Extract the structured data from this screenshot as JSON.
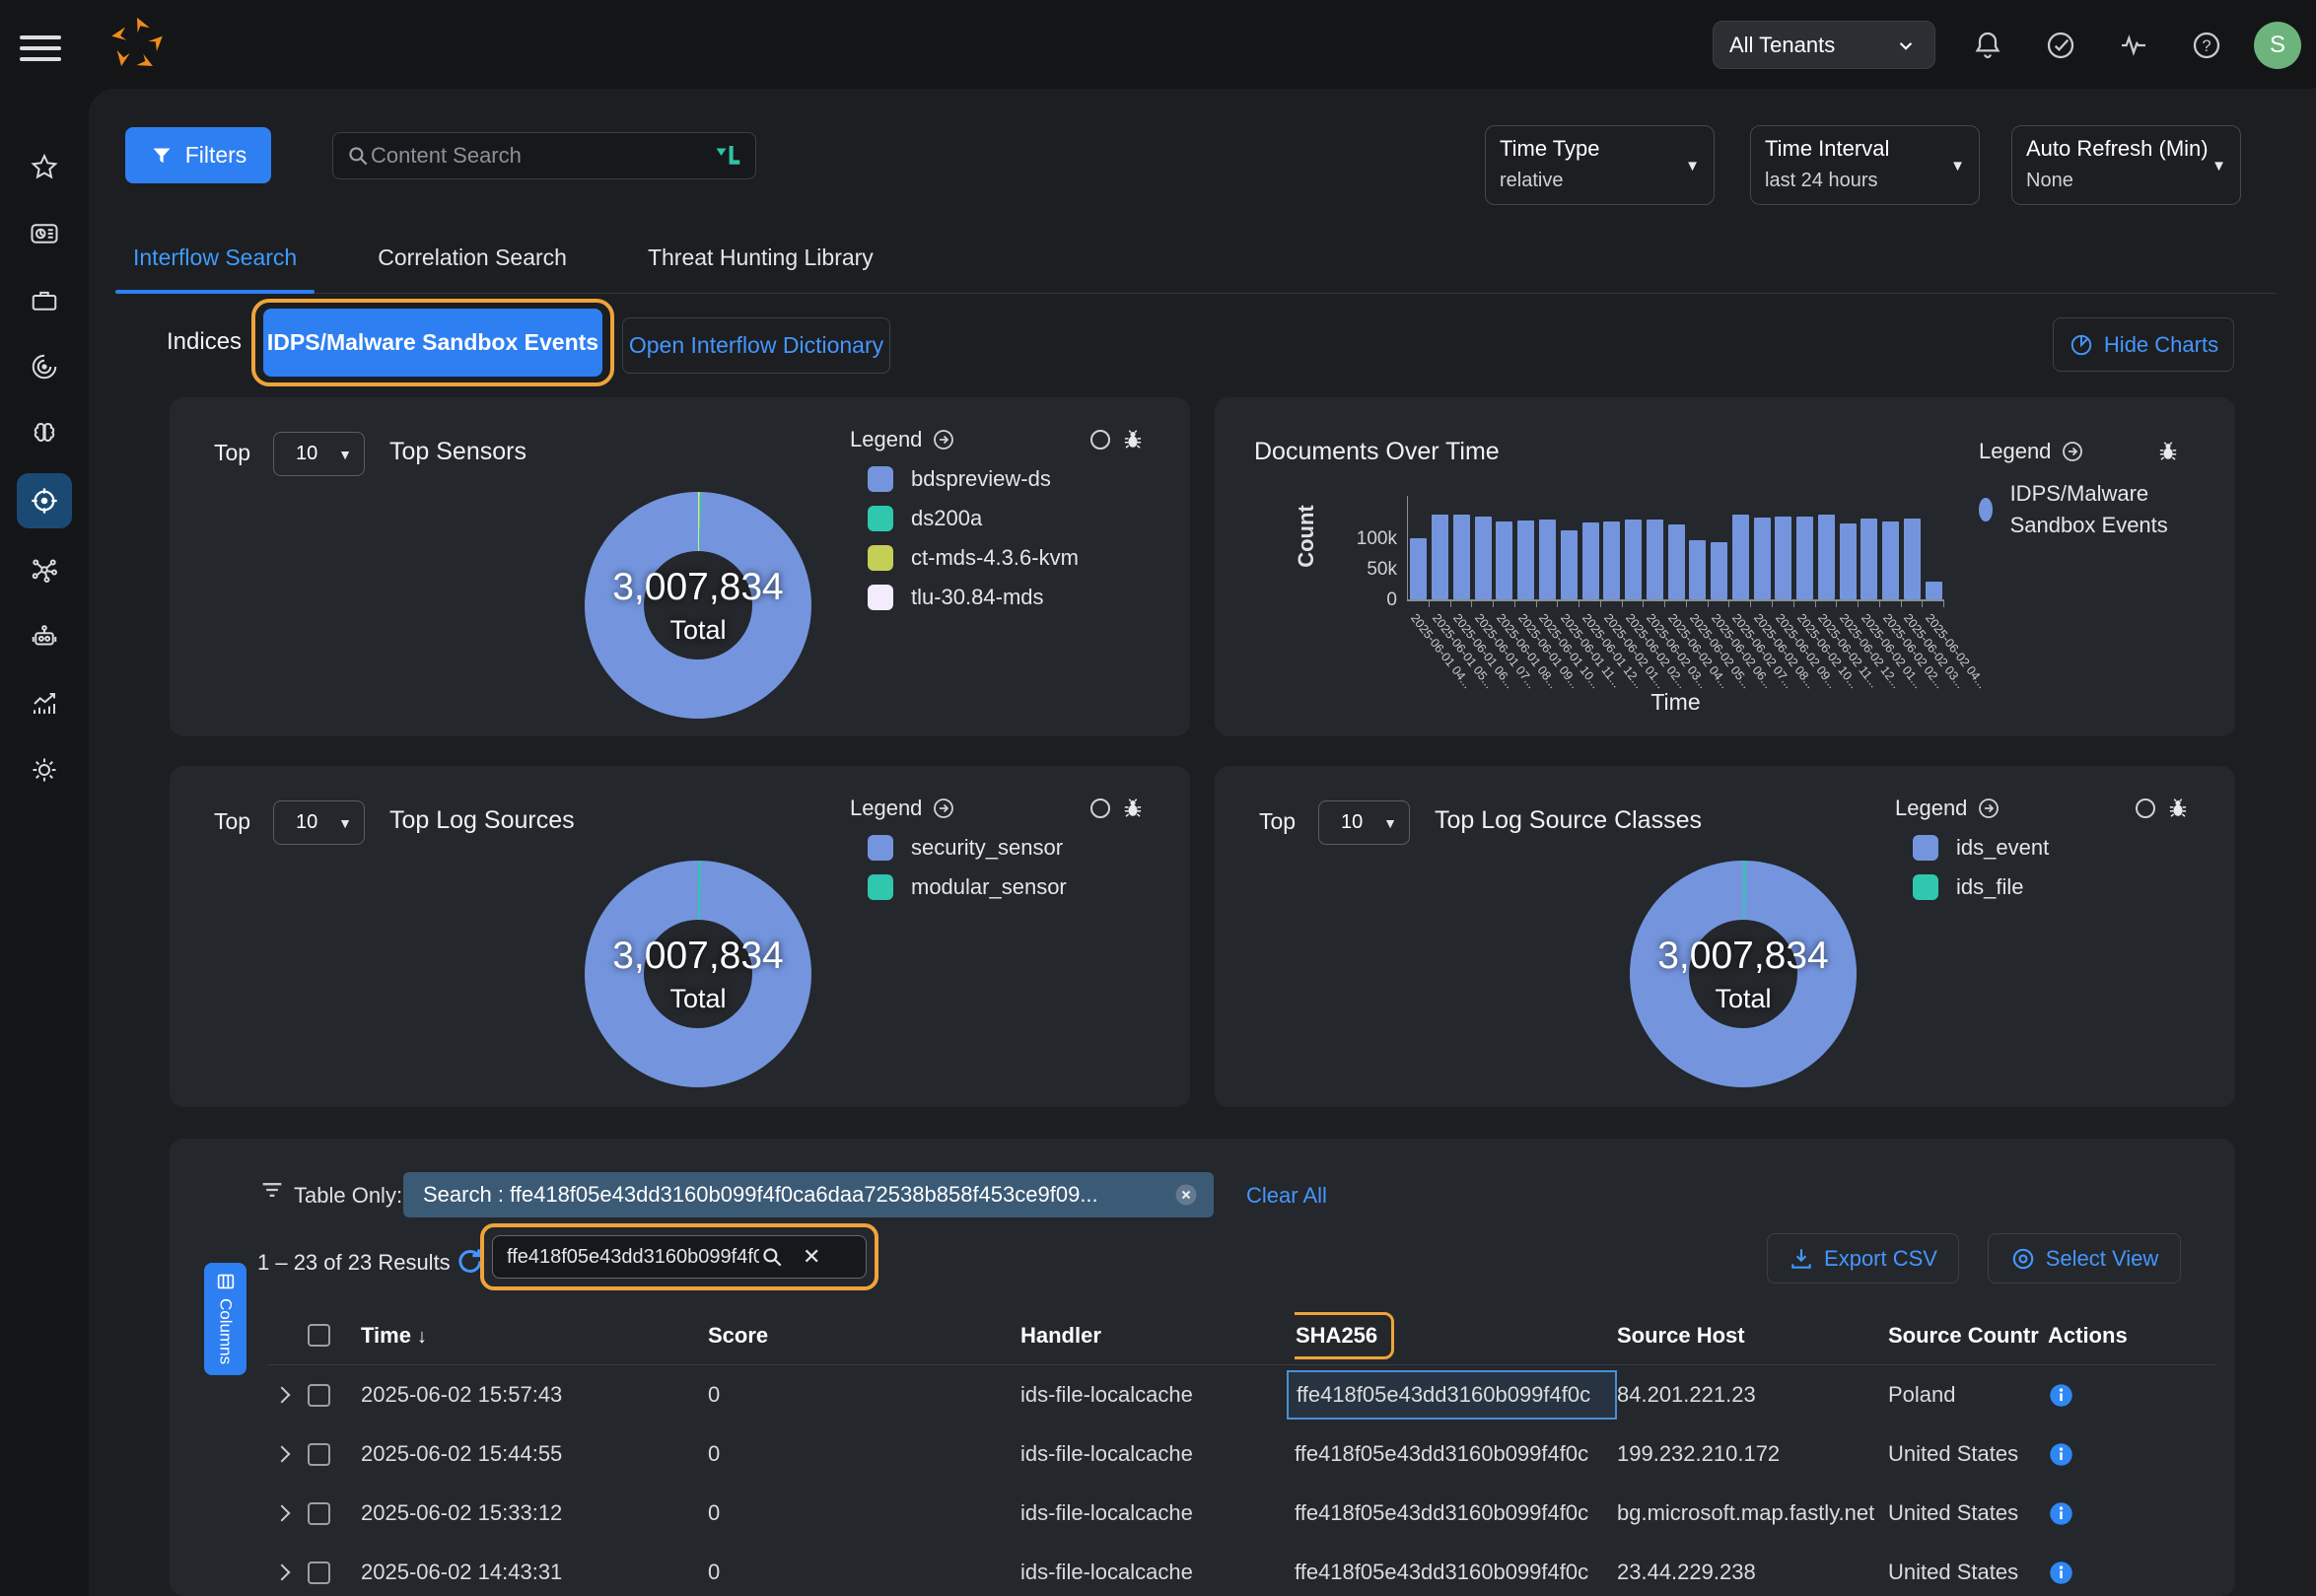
{
  "ui": {
    "tenant": "All Tenants",
    "avatar": "S",
    "filters": "Filters",
    "content_search_placeholder": "Content Search",
    "time_type_label": "Time Type",
    "time_type_value": "relative",
    "time_interval_label": "Time Interval",
    "time_interval_value": "last 24 hours",
    "auto_refresh_label": "Auto Refresh (Min)",
    "auto_refresh_value": "None",
    "indices_label": "Indices",
    "index_button": "IDPS/Malware Sandbox Events",
    "dictionary_button": "Open Interflow Dictionary",
    "hide_charts": "Hide Charts",
    "legend": "Legend",
    "accent_blue": "#2e7ff2",
    "highlight_orange": "#eea43a"
  },
  "tabs": [
    {
      "label": "Interflow Search",
      "active": true
    },
    {
      "label": "Correlation Search",
      "active": false
    },
    {
      "label": "Threat Hunting Library",
      "active": false
    }
  ],
  "panels": {
    "top_sensors": {
      "top": "Top",
      "top_value": "10",
      "title": "Top Sensors",
      "total": "3,007,834",
      "total_label": "Total"
    },
    "documents": {
      "title": "Documents Over Time"
    },
    "top_log_sources": {
      "top": "Top",
      "top_value": "10",
      "title": "Top Log Sources",
      "total": "3,007,834",
      "total_label": "Total"
    },
    "top_log_source_classes": {
      "top": "Top",
      "top_value": "10",
      "title": "Top Log Source Classes",
      "total": "3,007,834",
      "total_label": "Total"
    }
  },
  "chart_data": [
    {
      "id": "top_sensors",
      "type": "pie",
      "title": "Top Sensors",
      "total": "3,007,834",
      "series": [
        {
          "name": "bdspreview-ds",
          "value": 99.5,
          "color": "#7495de"
        },
        {
          "name": "ds200a",
          "value": 0.25,
          "color": "#2fc7ad"
        },
        {
          "name": "ct-mds-4.3.6-kvm",
          "value": 0.15,
          "color": "#c6cf55"
        },
        {
          "name": "tlu-30.84-mds",
          "value": 0.1,
          "color": "#f2ecfc"
        }
      ]
    },
    {
      "id": "documents_over_time",
      "type": "bar",
      "title": "Documents Over Time",
      "xlabel": "Time",
      "ylabel": "Count",
      "ylim": [
        0,
        150000
      ],
      "ytick_labels": [
        "0",
        "50k",
        "100k"
      ],
      "ytick_values": [
        0,
        50000,
        100000
      ],
      "legend": [
        {
          "name": "IDPS/Malware Sandbox Events",
          "color": "#7495de"
        }
      ],
      "x": [
        "2025-06-01 04...",
        "2025-06-01 05...",
        "2025-06-01 06...",
        "2025-06-01 07...",
        "2025-06-01 08...",
        "2025-06-01 09...",
        "2025-06-01 10...",
        "2025-06-01 11...",
        "2025-06-01 12...",
        "2025-06-02 01...",
        "2025-06-02 02...",
        "2025-06-02 03...",
        "2025-06-02 04...",
        "2025-06-02 05...",
        "2025-06-02 06...",
        "2025-06-02 07...",
        "2025-06-02 08...",
        "2025-06-02 09...",
        "2025-06-02 10...",
        "2025-06-02 11...",
        "2025-06-02 12...",
        "2025-06-02 01...",
        "2025-06-02 02...",
        "2025-06-02 03...",
        "2025-06-02 04..."
      ],
      "values": [
        100000,
        138000,
        139000,
        135000,
        127000,
        129000,
        130000,
        113000,
        125000,
        127000,
        130000,
        130000,
        123000,
        97000,
        93000,
        139000,
        134000,
        135000,
        136000,
        138000,
        124000,
        132000,
        128000,
        133000,
        29000
      ]
    },
    {
      "id": "top_log_sources",
      "type": "pie",
      "title": "Top Log Sources",
      "total": "3,007,834",
      "series": [
        {
          "name": "security_sensor",
          "value": 99.6,
          "color": "#7495de"
        },
        {
          "name": "modular_sensor",
          "value": 0.4,
          "color": "#2fc7ad"
        }
      ]
    },
    {
      "id": "top_log_source_classes",
      "type": "pie",
      "title": "Top Log Source Classes",
      "total": "3,007,834",
      "series": [
        {
          "name": "ids_event",
          "value": 99.6,
          "color": "#7495de"
        },
        {
          "name": "ids_file",
          "value": 0.4,
          "color": "#2fc7ad"
        }
      ]
    }
  ],
  "table": {
    "table_only_label": "Table Only:",
    "filter_chip": "Search : ffe418f05e43dd3160b099f4f0ca6daa72538b858f453ce9f09...",
    "clear_all": "Clear All",
    "columns_button": "Columns",
    "results_text": "1 – 23 of 23 Results",
    "search_value": "ffe418f05e43dd3160b099f4f0",
    "export_csv": "Export CSV",
    "select_view": "Select View",
    "sort_arrow": "↓",
    "headers": [
      "Time",
      "Score",
      "Handler",
      "SHA256",
      "Source Host",
      "Source Countr",
      "Actions"
    ],
    "rows": [
      {
        "time": "2025-06-02 15:57:43",
        "score": "0",
        "handler": "ids-file-localcache",
        "sha256": "ffe418f05e43dd3160b099f4f0c",
        "source_host": "84.201.221.23",
        "source_country": "Poland"
      },
      {
        "time": "2025-06-02 15:44:55",
        "score": "0",
        "handler": "ids-file-localcache",
        "sha256": "ffe418f05e43dd3160b099f4f0c",
        "source_host": "199.232.210.172",
        "source_country": "United States"
      },
      {
        "time": "2025-06-02 15:33:12",
        "score": "0",
        "handler": "ids-file-localcache",
        "sha256": "ffe418f05e43dd3160b099f4f0c",
        "source_host": "bg.microsoft.map.fastly.net",
        "source_country": "United States"
      },
      {
        "time": "2025-06-02 14:43:31",
        "score": "0",
        "handler": "ids-file-localcache",
        "sha256": "ffe418f05e43dd3160b099f4f0c",
        "source_host": "23.44.229.238",
        "source_country": "United States"
      }
    ]
  }
}
